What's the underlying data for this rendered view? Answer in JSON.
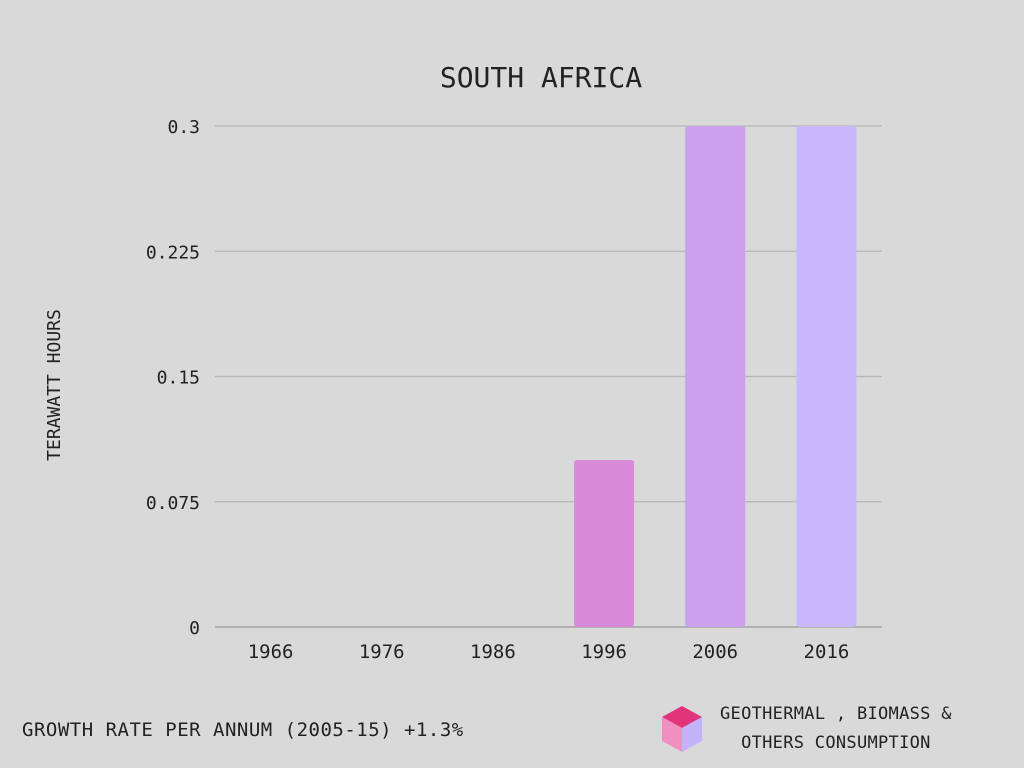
{
  "chart_data": {
    "type": "bar",
    "title": "SOUTH AFRICA",
    "ylabel": "TERAWATT HOURS",
    "xlabel": "",
    "categories": [
      "1966",
      "1976",
      "1986",
      "1996",
      "2006",
      "2016"
    ],
    "values": [
      0,
      0,
      0,
      0.1,
      0.3,
      0.3
    ],
    "colors": [
      "#d98ad9",
      "#d98ad9",
      "#d98ad9",
      "#d98ad9",
      "#cca0ec",
      "#c9b8fb"
    ],
    "ylim": [
      0,
      0.3
    ],
    "yticks": [
      "0",
      "0.075",
      "0.15",
      "0.225",
      "0.3"
    ],
    "grid": true
  },
  "footer": {
    "growth_text": "GROWTH RATE PER ANNUM (2005-15) +1.3%"
  },
  "legend": {
    "line1": "GEOTHERMAL , BIOMASS &",
    "line2": "OTHERS CONSUMPTION",
    "icon": "cube-icon",
    "icon_colors": {
      "top": "#e0357a",
      "left": "#f08fc0",
      "right": "#c3b3fb"
    }
  }
}
